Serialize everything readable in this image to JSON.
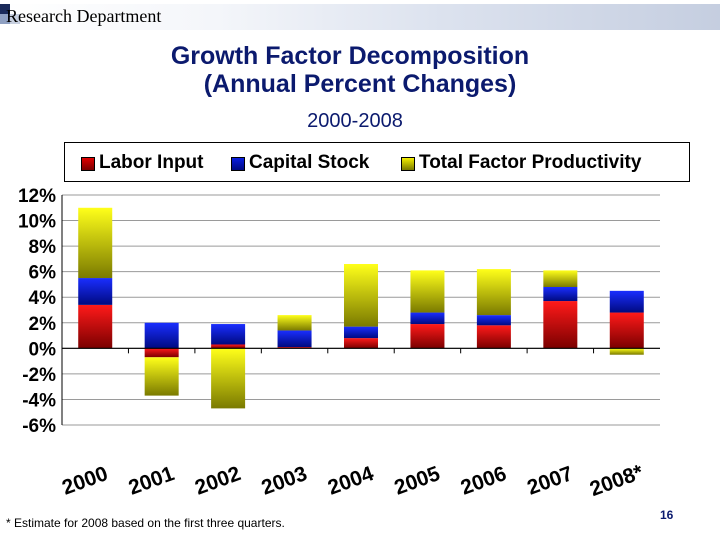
{
  "header": {
    "department": "Research Department"
  },
  "title_line1": "Growth Factor Decomposition",
  "title_line2": "(Annual Percent Changes)",
  "subtitle": "2000-2008",
  "footnote": "* Estimate for 2008 based on the first three quarters.",
  "page_number": "16",
  "colors": {
    "labor": "#e00000",
    "labor_dark": "#7a0000",
    "capital": "#0a1ee0",
    "capital_dark": "#000a80",
    "tfp": "#f4ef00",
    "tfp_dark": "#7a7a00",
    "title": "#0b1a6e"
  },
  "chart_data": {
    "type": "bar",
    "stacked": true,
    "categories": [
      "2000",
      "2001",
      "2002",
      "2003",
      "2004",
      "2005",
      "2006",
      "2007",
      "2008*"
    ],
    "series": [
      {
        "name": "Labor Input",
        "values": [
          3.4,
          -0.7,
          0.3,
          0.1,
          0.8,
          1.9,
          1.8,
          3.7,
          2.8
        ]
      },
      {
        "name": "Capital Stock",
        "values": [
          2.1,
          2.0,
          1.6,
          1.3,
          0.9,
          0.9,
          0.8,
          1.1,
          1.7
        ]
      },
      {
        "name": "Total Factor Productivity",
        "values": [
          5.5,
          -3.0,
          -4.7,
          1.2,
          4.9,
          3.3,
          3.6,
          1.3,
          -0.5
        ]
      }
    ],
    "ylim": [
      -6,
      12
    ],
    "yticks": [
      "12%",
      "10%",
      "8%",
      "6%",
      "4%",
      "2%",
      "0%",
      "-2%",
      "-4%",
      "-6%"
    ],
    "ytick_values": [
      12,
      10,
      8,
      6,
      4,
      2,
      0,
      -2,
      -4,
      -6
    ],
    "grid": true,
    "legend_position": "top"
  }
}
